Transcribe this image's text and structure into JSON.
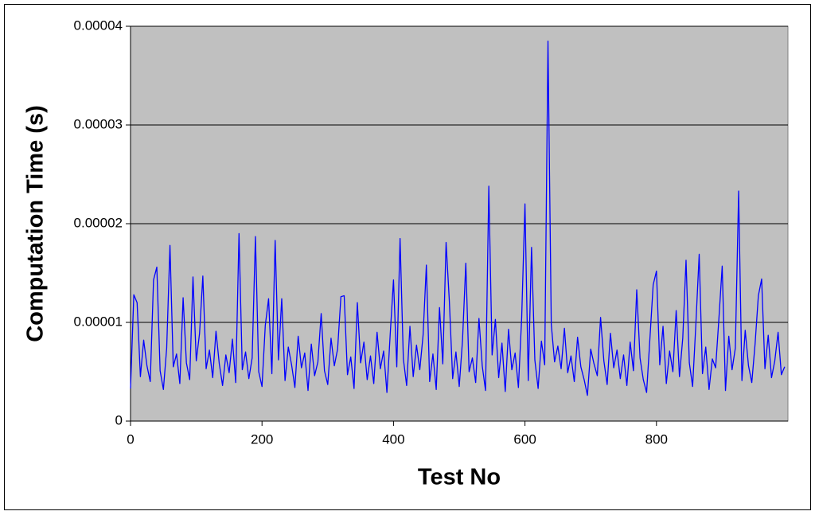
{
  "chart_data": {
    "type": "line",
    "x_label": "Test No",
    "y_label": "Computation Time (s)",
    "xlim": [
      0,
      1000
    ],
    "xticks": [
      0,
      200,
      400,
      600,
      800
    ],
    "ylim": [
      0,
      4e-05
    ],
    "yticks": [
      0,
      1e-05,
      2e-05,
      3e-05,
      4e-05
    ],
    "grid": true,
    "x": [
      0,
      5,
      10,
      15,
      20,
      25,
      30,
      35,
      40,
      45,
      50,
      55,
      60,
      65,
      70,
      75,
      80,
      85,
      90,
      95,
      100,
      105,
      110,
      115,
      120,
      125,
      130,
      135,
      140,
      145,
      150,
      155,
      160,
      165,
      170,
      175,
      180,
      185,
      190,
      195,
      200,
      205,
      210,
      215,
      220,
      225,
      230,
      235,
      240,
      245,
      250,
      255,
      260,
      265,
      270,
      275,
      280,
      285,
      290,
      295,
      300,
      305,
      310,
      315,
      320,
      325,
      330,
      335,
      340,
      345,
      350,
      355,
      360,
      365,
      370,
      375,
      380,
      385,
      390,
      395,
      400,
      405,
      410,
      415,
      420,
      425,
      430,
      435,
      440,
      445,
      450,
      455,
      460,
      465,
      470,
      475,
      480,
      485,
      490,
      495,
      500,
      505,
      510,
      515,
      520,
      525,
      530,
      535,
      540,
      545,
      550,
      555,
      560,
      565,
      570,
      575,
      580,
      585,
      590,
      595,
      600,
      605,
      610,
      615,
      620,
      625,
      630,
      635,
      640,
      645,
      650,
      655,
      660,
      665,
      670,
      675,
      680,
      685,
      690,
      695,
      700,
      705,
      710,
      715,
      720,
      725,
      730,
      735,
      740,
      745,
      750,
      755,
      760,
      765,
      770,
      775,
      780,
      785,
      790,
      795,
      800,
      805,
      810,
      815,
      820,
      825,
      830,
      835,
      840,
      845,
      850,
      855,
      860,
      865,
      870,
      875,
      880,
      885,
      890,
      895,
      900,
      905,
      910,
      915,
      920,
      925,
      930,
      935,
      940,
      945,
      950,
      955,
      960,
      965,
      970,
      975,
      980,
      985,
      990,
      995
    ],
    "series": [
      {
        "color": "#0000ff",
        "values": [
          3.3e-06,
          1.28e-05,
          1.2e-05,
          4.5e-06,
          8.2e-06,
          5.6e-06,
          4e-06,
          1.43e-05,
          1.56e-05,
          5.1e-06,
          3.2e-06,
          7.4e-06,
          1.78e-05,
          5.5e-06,
          6.8e-06,
          3.8e-06,
          1.25e-05,
          5.9e-06,
          4.2e-06,
          1.46e-05,
          6.1e-06,
          8.9e-06,
          1.47e-05,
          5.3e-06,
          7.2e-06,
          4.4e-06,
          9.1e-06,
          5.8e-06,
          3.6e-06,
          6.7e-06,
          4.9e-06,
          8.3e-06,
          3.9e-06,
          1.9e-05,
          5.2e-06,
          7e-06,
          4.3e-06,
          6.4e-06,
          1.87e-05,
          5e-06,
          3.5e-06,
          9.7e-06,
          1.24e-05,
          4.8e-06,
          1.83e-05,
          6.2e-06,
          1.24e-05,
          4.1e-06,
          7.5e-06,
          5.7e-06,
          3.4e-06,
          8.6e-06,
          5.4e-06,
          6.9e-06,
          3.1e-06,
          7.8e-06,
          4.6e-06,
          6e-06,
          1.09e-05,
          5.1e-06,
          3.7e-06,
          8.4e-06,
          5.6e-06,
          7.3e-06,
          1.26e-05,
          1.27e-05,
          4.7e-06,
          6.5e-06,
          3.3e-06,
          1.2e-05,
          5.9e-06,
          8e-06,
          4.2e-06,
          6.6e-06,
          3.8e-06,
          9e-06,
          5.3e-06,
          7.1e-06,
          2.9e-06,
          8.8e-06,
          1.43e-05,
          5.5e-06,
          1.85e-05,
          6.3e-06,
          3.6e-06,
          9.6e-06,
          4.5e-06,
          7.7e-06,
          5.2e-06,
          8.7e-06,
          1.58e-05,
          4e-06,
          6.8e-06,
          3.2e-06,
          1.15e-05,
          5.8e-06,
          1.81e-05,
          1.21e-05,
          4.3e-06,
          7e-06,
          3.5e-06,
          8.2e-06,
          1.6e-05,
          5e-06,
          6.4e-06,
          3.9e-06,
          1.04e-05,
          5.6e-06,
          3.1e-06,
          2.38e-05,
          6.7e-06,
          1.03e-05,
          4.4e-06,
          7.9e-06,
          3e-06,
          9.3e-06,
          5.2e-06,
          6.9e-06,
          3.4e-06,
          1.05e-05,
          2.2e-05,
          4.1e-06,
          1.76e-05,
          6.2e-06,
          3.3e-06,
          8.1e-06,
          5.7e-06,
          3.85e-05,
          9.8e-06,
          6e-06,
          7.6e-06,
          5.3e-06,
          9.4e-06,
          4.9e-06,
          6.6e-06,
          4e-06,
          8.5e-06,
          5.5e-06,
          4.2e-06,
          2.6e-06,
          7.3e-06,
          5.8e-06,
          4.6e-06,
          1.05e-05,
          6.1e-06,
          3.7e-06,
          8.9e-06,
          5.4e-06,
          7.2e-06,
          4.3e-06,
          6.7e-06,
          3.6e-06,
          8e-06,
          5.1e-06,
          1.33e-05,
          6.4e-06,
          4.2e-06,
          2.9e-06,
          8.3e-06,
          1.38e-05,
          1.52e-05,
          5.7e-06,
          9.6e-06,
          3.8e-06,
          7.1e-06,
          5e-06,
          1.12e-05,
          4.5e-06,
          8.4e-06,
          1.63e-05,
          5.9e-06,
          3.5e-06,
          9.9e-06,
          1.69e-05,
          4.8e-06,
          7.5e-06,
          3.2e-06,
          6.3e-06,
          5.4e-06,
          1.04e-05,
          1.57e-05,
          3.1e-06,
          8.6e-06,
          5.2e-06,
          7.4e-06,
          2.33e-05,
          4.1e-06,
          9.2e-06,
          5.6e-06,
          3.9e-06,
          7.8e-06,
          1.27e-05,
          1.44e-05,
          5.3e-06,
          8.7e-06,
          4.4e-06,
          6.1e-06,
          9e-06,
          4.7e-06,
          5.5e-06
        ]
      }
    ]
  }
}
